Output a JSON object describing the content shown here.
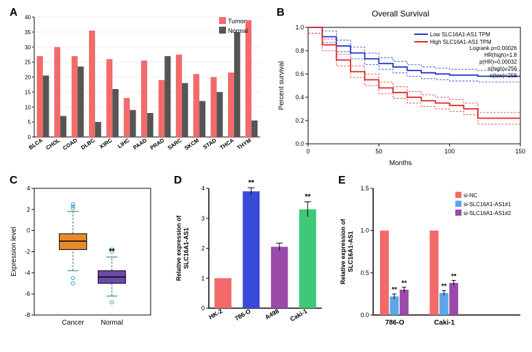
{
  "panelA": {
    "label": "A",
    "type": "bar",
    "categories": [
      "BLCA",
      "CHOL",
      "COAD",
      "DLBC",
      "KIRC",
      "LIHC",
      "PAAD",
      "PRAD",
      "SARC",
      "SKCM",
      "STAD",
      "THCA",
      "THYM"
    ],
    "series": [
      {
        "name": "Tumor",
        "color": "#f36a6a",
        "values": [
          27,
          30,
          27,
          35.5,
          26,
          13,
          25.5,
          19,
          27.5,
          21,
          20,
          21.5,
          39
        ]
      },
      {
        "name": "Normal",
        "color": "#555555",
        "values": [
          20.5,
          7,
          23.5,
          5,
          16,
          9,
          8,
          27,
          18,
          12,
          15,
          35,
          5.5
        ]
      }
    ],
    "ylim": [
      0,
      40
    ],
    "ytick_step": 5,
    "label_fontsize": 9,
    "background": "#ffffff"
  },
  "panelB": {
    "label": "B",
    "type": "survival",
    "title": "Overall Survival",
    "title_fontsize": 12,
    "xlabel": "Months",
    "ylabel": "Percent survival",
    "xlim": [
      0,
      150
    ],
    "xtick_step": 50,
    "ylim": [
      0,
      1.0
    ],
    "ytick_step": 0.2,
    "series": [
      {
        "name": "Low SLC16A1-AS1 TPM",
        "color": "#1b33c9",
        "points": [
          [
            0,
            1.0
          ],
          [
            10,
            0.92
          ],
          [
            20,
            0.84
          ],
          [
            30,
            0.78
          ],
          [
            40,
            0.73
          ],
          [
            50,
            0.69
          ],
          [
            60,
            0.66
          ],
          [
            70,
            0.63
          ],
          [
            80,
            0.61
          ],
          [
            90,
            0.6
          ],
          [
            100,
            0.59
          ],
          [
            120,
            0.58
          ],
          [
            150,
            0.58
          ]
        ]
      },
      {
        "name": "High SLC16A1-AS1 TPM",
        "color": "#e12020",
        "points": [
          [
            0,
            1.0
          ],
          [
            10,
            0.85
          ],
          [
            20,
            0.72
          ],
          [
            30,
            0.62
          ],
          [
            40,
            0.55
          ],
          [
            50,
            0.48
          ],
          [
            60,
            0.44
          ],
          [
            70,
            0.4
          ],
          [
            80,
            0.37
          ],
          [
            90,
            0.35
          ],
          [
            100,
            0.33
          ],
          [
            110,
            0.3
          ],
          [
            120,
            0.22
          ],
          [
            150,
            0.22
          ]
        ]
      }
    ],
    "stats": [
      "Logrank p=0.00026",
      "HR(high)=1.8",
      "p(HR)=0.00032",
      "n(high)=256",
      "n(low)=258"
    ],
    "label_fontsize": 10
  },
  "panelC": {
    "label": "C",
    "type": "boxplot",
    "ylabel": "Expression level",
    "categories": [
      "Cancer",
      "Normal"
    ],
    "boxes": [
      {
        "name": "Cancer",
        "color": "#e78a2b",
        "median": -1.0,
        "q1": -1.8,
        "q3": -0.3,
        "whisker_low": -3.8,
        "whisker_high": 1.8,
        "outliers": [
          2.5,
          2.3,
          2.1,
          -4.5,
          -5.0
        ]
      },
      {
        "name": "Normal",
        "color": "#6a4aa8",
        "median": -4.4,
        "q1": -5.0,
        "q3": -3.8,
        "whisker_low": -6.2,
        "whisker_high": -2.5,
        "outliers": [
          -1.8,
          -2.0,
          -6.8
        ]
      }
    ],
    "ylim": [
      -8,
      4
    ],
    "ytick_step": 2,
    "sig": "**",
    "outlier_color": "#2aa0d8",
    "whisker_color": "#1a7a3a"
  },
  "panelD": {
    "label": "D",
    "type": "bar",
    "ylabel": "Relative expression of\nSLC16A1-AS1",
    "categories": [
      "HK-2",
      "786-O",
      "A498",
      "Caki-1"
    ],
    "values": [
      1.0,
      3.9,
      2.05,
      3.3
    ],
    "errors": [
      0,
      0.12,
      0.12,
      0.25
    ],
    "colors": [
      "#f36a6a",
      "#3a4ad8",
      "#9a4aa8",
      "#3ec878"
    ],
    "sig": [
      "",
      "**",
      "",
      "**"
    ],
    "ylim": [
      0,
      4
    ],
    "ytick_step": 1
  },
  "panelE": {
    "label": "E",
    "type": "bar",
    "ylabel": "Relative expression of\nSLC16A1-AS1",
    "groups": [
      "786-O",
      "Caki-1"
    ],
    "series": [
      {
        "name": "si-NC",
        "color": "#f36a6a",
        "values": [
          1.0,
          1.0
        ],
        "errors": [
          0,
          0
        ],
        "sig": [
          "",
          ""
        ]
      },
      {
        "name": "si-SLC16A1-AS1#1",
        "color": "#5aa8e8",
        "values": [
          0.22,
          0.26
        ],
        "errors": [
          0.03,
          0.03
        ],
        "sig": [
          "**",
          "**"
        ]
      },
      {
        "name": "si-SLC16A1-AS1#2",
        "color": "#9a4aa8",
        "values": [
          0.3,
          0.38
        ],
        "errors": [
          0.03,
          0.03
        ],
        "sig": [
          "**",
          "**"
        ]
      }
    ],
    "ylim": [
      0,
      1.5
    ],
    "ytick_step": 0.5
  }
}
